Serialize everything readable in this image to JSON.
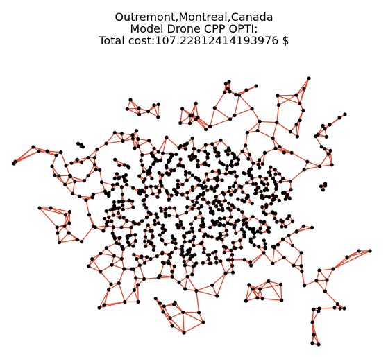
{
  "figure": {
    "title_lines": [
      "Outremont,Montreal,Canada",
      "Model Drone CPP OPTI:",
      "Total cost:107.22812414193976 $"
    ],
    "edge_color": "#e8442a",
    "node_color": "#000000"
  }
}
